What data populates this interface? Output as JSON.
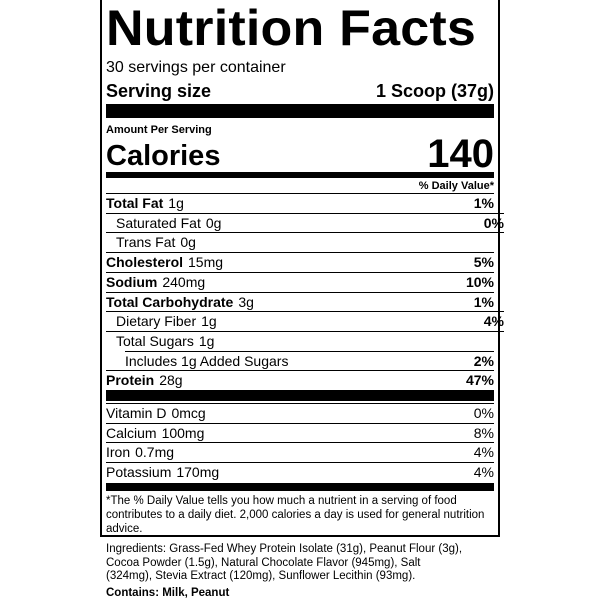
{
  "label": {
    "title": "Nutrition Facts",
    "servings_per_container": "30 servings per container",
    "serving_size": {
      "label": "Serving size",
      "value": "1 Scoop (37g)"
    },
    "amount_per_serving": "Amount Per Serving",
    "calories": {
      "label": "Calories",
      "value": "140"
    },
    "daily_value_heading": "% Daily Value*",
    "nutrients": [
      {
        "name": "Total Fat",
        "amount": "1g",
        "daily_value": "1%"
      },
      {
        "name": "Saturated Fat",
        "amount": "0g",
        "daily_value": "0%"
      },
      {
        "name": "Trans Fat",
        "amount": "0g"
      },
      {
        "name": "Cholesterol",
        "amount": "15mg",
        "daily_value": "5%"
      },
      {
        "name": "Sodium",
        "amount": "240mg",
        "daily_value": "10%"
      },
      {
        "name": "Total Carbohydrate",
        "amount": "3g",
        "daily_value": "1%"
      },
      {
        "name": "Dietary Fiber",
        "amount": "1g",
        "daily_value": "4%"
      },
      {
        "name": "Total Sugars",
        "amount": "1g"
      },
      {
        "name": "Includes 1g Added Sugars",
        "daily_value": "2%"
      },
      {
        "name": "Protein",
        "amount": "28g",
        "daily_value": "47%"
      }
    ],
    "vitamins_minerals": [
      {
        "name": "Vitamin D",
        "amount": "0mcg",
        "daily_value": "0%"
      },
      {
        "name": "Calcium",
        "amount": "100mg",
        "daily_value": "8%"
      },
      {
        "name": "Iron",
        "amount": "0.7mg",
        "daily_value": "4%"
      },
      {
        "name": "Potassium",
        "amount": "170mg",
        "daily_value": "4%"
      }
    ],
    "footnote": "*The % Daily Value tells you how much a nutrient in a serving of food contributes to a daily diet. 2,000 calories a day is used for general nutrition advice."
  },
  "ingredients": "Ingredients: Grass-Fed Whey Protein Isolate (31g), Peanut Flour (3g), Cocoa Powder (1.5g), Natural Chocolate Flavor (945mg), Salt (324mg), Stevia Extract (120mg), Sunflower Lecithin (93mg).",
  "allergens": "Contains: Milk, Peanut"
}
